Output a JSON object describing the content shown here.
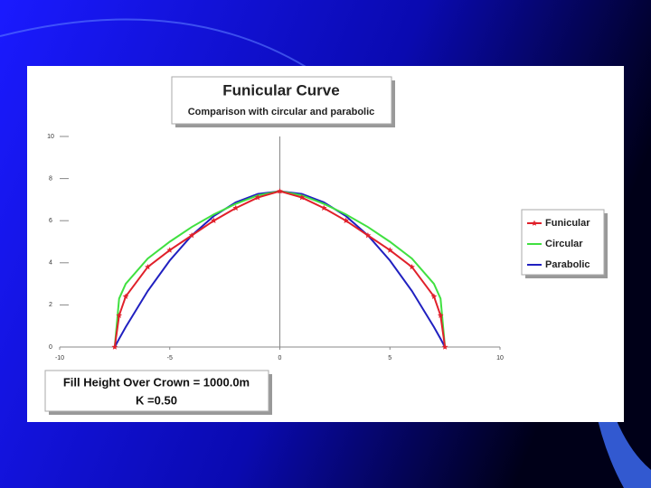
{
  "chart_data": {
    "type": "line",
    "title": "Funicular Curve",
    "subtitle": "Comparison with circular and parabolic",
    "annotations": [
      "Fill Height Over Crown = 1000.0m",
      "K =0.50"
    ],
    "x": [
      -7.5,
      -7.3,
      -7,
      -6,
      -5,
      -4,
      -3,
      -2,
      -1,
      0,
      1,
      2,
      3,
      4,
      5,
      6,
      7,
      7.3,
      7.5
    ],
    "series": [
      {
        "name": "Funicular",
        "color": "#e0202a",
        "marker": "star",
        "values": [
          0,
          1.5,
          2.4,
          3.8,
          4.6,
          5.3,
          6.0,
          6.6,
          7.1,
          7.4,
          7.1,
          6.6,
          6.0,
          5.3,
          4.6,
          3.8,
          2.4,
          1.5,
          0
        ]
      },
      {
        "name": "Circular",
        "color": "#40e040",
        "values": [
          0,
          2.3,
          3.0,
          4.2,
          5.0,
          5.7,
          6.3,
          6.8,
          7.2,
          7.4,
          7.2,
          6.8,
          6.3,
          5.7,
          5.0,
          4.2,
          3.0,
          2.3,
          0
        ]
      },
      {
        "name": "Parabolic",
        "color": "#2020c0",
        "values": [
          0,
          0.39,
          0.95,
          2.66,
          4.11,
          5.3,
          6.22,
          6.87,
          7.27,
          7.4,
          7.27,
          6.87,
          6.22,
          5.3,
          4.11,
          2.66,
          0.95,
          0.39,
          0
        ]
      }
    ],
    "xlim": [
      -10,
      10
    ],
    "xticks": [
      -10,
      -5,
      0,
      5,
      10
    ],
    "ylim": [
      0,
      10
    ],
    "yticks": [
      0,
      2,
      4,
      6,
      8,
      10
    ],
    "legend": "right"
  }
}
